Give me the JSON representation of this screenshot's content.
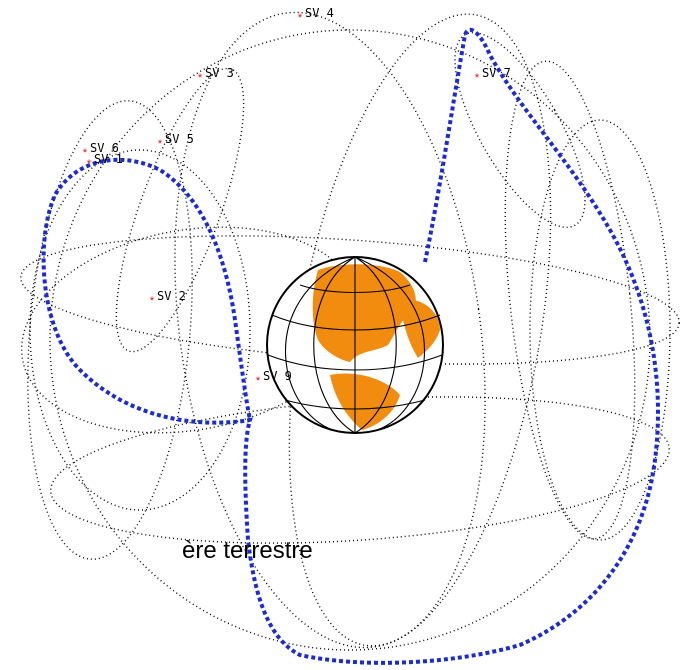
{
  "satellites": [
    {
      "label": "SV 4"
    },
    {
      "label": "SV 3"
    },
    {
      "label": "SV 7"
    },
    {
      "label": "SV 6"
    },
    {
      "label": "SV 1"
    },
    {
      "label": "SV 5"
    },
    {
      "label": "SV 2"
    },
    {
      "label": "SV 9"
    }
  ],
  "caption": "ère terrestre"
}
